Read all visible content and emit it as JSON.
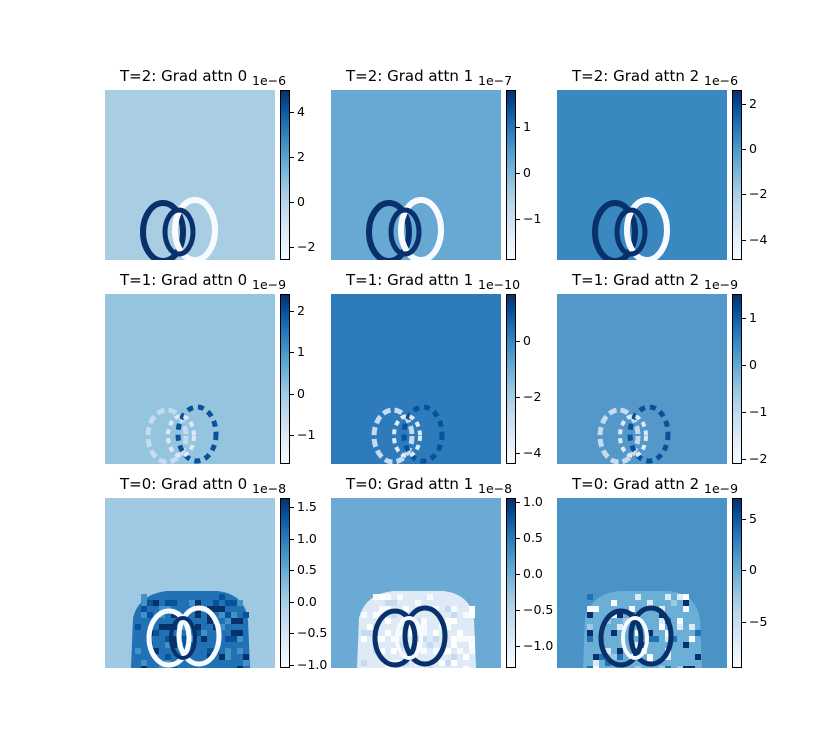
{
  "chart_data": [
    {
      "type": "heatmap",
      "title": "T=2: Grad attn 0",
      "offset_label": "1e−6",
      "background": "#a9cde3",
      "pattern": "rings",
      "colorbar": {
        "min": -2.6,
        "max": 5.0,
        "ticks": [
          {
            "value": 4,
            "label": "4"
          },
          {
            "value": 2,
            "label": "2"
          },
          {
            "value": 0,
            "label": "0"
          },
          {
            "value": -2,
            "label": "−2"
          }
        ]
      }
    },
    {
      "type": "heatmap",
      "title": "T=2: Grad attn 1",
      "offset_label": "1e−7",
      "background": "#68a9d4",
      "pattern": "rings",
      "colorbar": {
        "min": -1.9,
        "max": 1.8,
        "ticks": [
          {
            "value": 1,
            "label": "1"
          },
          {
            "value": 0,
            "label": "0"
          },
          {
            "value": -1,
            "label": "−1"
          }
        ]
      }
    },
    {
      "type": "heatmap",
      "title": "T=2: Grad attn 2",
      "offset_label": "1e−6",
      "background": "#3a88c0",
      "pattern": "rings",
      "colorbar": {
        "min": -4.9,
        "max": 2.6,
        "ticks": [
          {
            "value": 2,
            "label": "2"
          },
          {
            "value": 0,
            "label": "0"
          },
          {
            "value": -2,
            "label": "−2"
          },
          {
            "value": -4,
            "label": "−4"
          }
        ]
      }
    },
    {
      "type": "heatmap",
      "title": "T=1: Grad attn 0",
      "offset_label": "1e−9",
      "background": "#95c4df",
      "pattern": "faint",
      "colorbar": {
        "min": -1.7,
        "max": 2.4,
        "ticks": [
          {
            "value": 2,
            "label": "2"
          },
          {
            "value": 1,
            "label": "1"
          },
          {
            "value": 0,
            "label": "0"
          },
          {
            "value": -1,
            "label": "−1"
          }
        ]
      }
    },
    {
      "type": "heatmap",
      "title": "T=1: Grad attn 1",
      "offset_label": "1e−10",
      "background": "#2e7bbb",
      "pattern": "faint",
      "colorbar": {
        "min": -4.4,
        "max": 1.7,
        "ticks": [
          {
            "value": 0,
            "label": "0"
          },
          {
            "value": -2,
            "label": "−2"
          },
          {
            "value": -4,
            "label": "−4"
          }
        ]
      }
    },
    {
      "type": "heatmap",
      "title": "T=1: Grad attn 2",
      "offset_label": "1e−9",
      "background": "#5498ca",
      "pattern": "faint",
      "colorbar": {
        "min": -2.1,
        "max": 1.5,
        "ticks": [
          {
            "value": 1,
            "label": "1"
          },
          {
            "value": 0,
            "label": "0"
          },
          {
            "value": -1,
            "label": "−1"
          },
          {
            "value": -2,
            "label": "−2"
          }
        ]
      }
    },
    {
      "type": "heatmap",
      "title": "T=0: Grad attn 0",
      "offset_label": "1e−8",
      "background": "#9fc9e2",
      "pattern": "blob",
      "colorbar": {
        "min": -1.05,
        "max": 1.65,
        "ticks": [
          {
            "value": 1.5,
            "label": "1.5"
          },
          {
            "value": 1.0,
            "label": "1.0"
          },
          {
            "value": 0.5,
            "label": "0.5"
          },
          {
            "value": 0.0,
            "label": "0.0"
          },
          {
            "value": -0.5,
            "label": "−0.5"
          },
          {
            "value": -1.0,
            "label": "−1.0"
          }
        ]
      }
    },
    {
      "type": "heatmap",
      "title": "T=0: Grad attn 1",
      "offset_label": "1e−8",
      "background": "#6aaad5",
      "pattern": "blob-light",
      "colorbar": {
        "min": -1.3,
        "max": 1.05,
        "ticks": [
          {
            "value": 1.0,
            "label": "1.0"
          },
          {
            "value": 0.5,
            "label": "0.5"
          },
          {
            "value": 0.0,
            "label": "0.0"
          },
          {
            "value": -0.5,
            "label": "−0.5"
          },
          {
            "value": -1.0,
            "label": "−1.0"
          }
        ]
      }
    },
    {
      "type": "heatmap",
      "title": "T=0: Grad attn 2",
      "offset_label": "1e−9",
      "background": "#4a93c6",
      "pattern": "noisy",
      "colorbar": {
        "min": -9.5,
        "max": 7.0,
        "ticks": [
          {
            "value": 5,
            "label": "5"
          },
          {
            "value": 0,
            "label": "0"
          },
          {
            "value": -5,
            "label": "−5"
          }
        ]
      }
    }
  ]
}
